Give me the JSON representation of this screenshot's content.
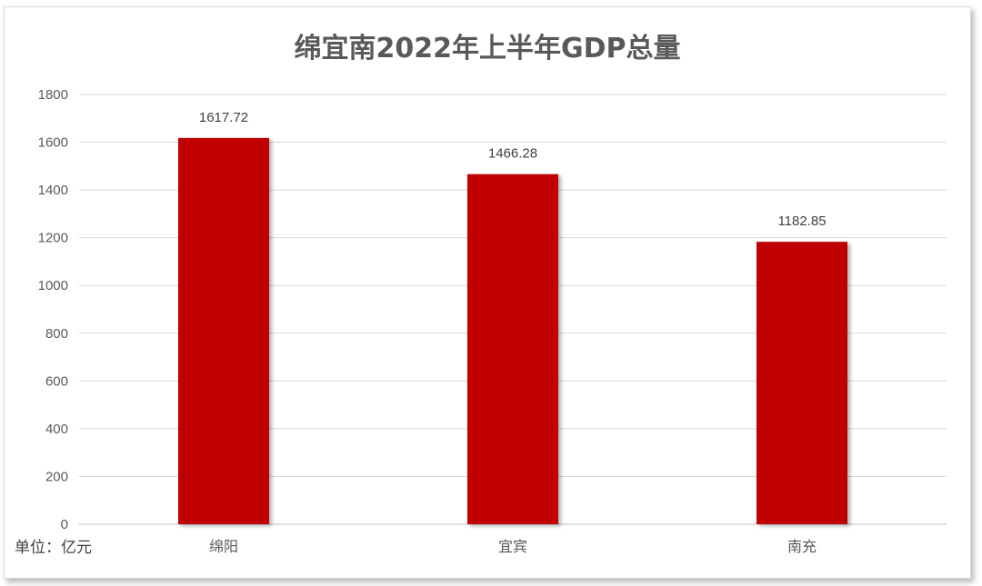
{
  "chart_data": {
    "type": "bar",
    "title": "绵宜南2022年上半年GDP总量",
    "categories": [
      "绵阳",
      "宜宾",
      "南充"
    ],
    "values": [
      1617.72,
      1466.28,
      1182.85
    ],
    "data_labels": [
      "1617.72",
      "1466.28",
      "1182.85"
    ],
    "unit_note": "单位：亿元",
    "ylim": [
      0,
      1800
    ],
    "yticks": [
      0,
      200,
      400,
      600,
      800,
      1000,
      1200,
      1400,
      1600,
      1800
    ],
    "grid": true,
    "legend": "none",
    "bar_color": "#c00000"
  }
}
